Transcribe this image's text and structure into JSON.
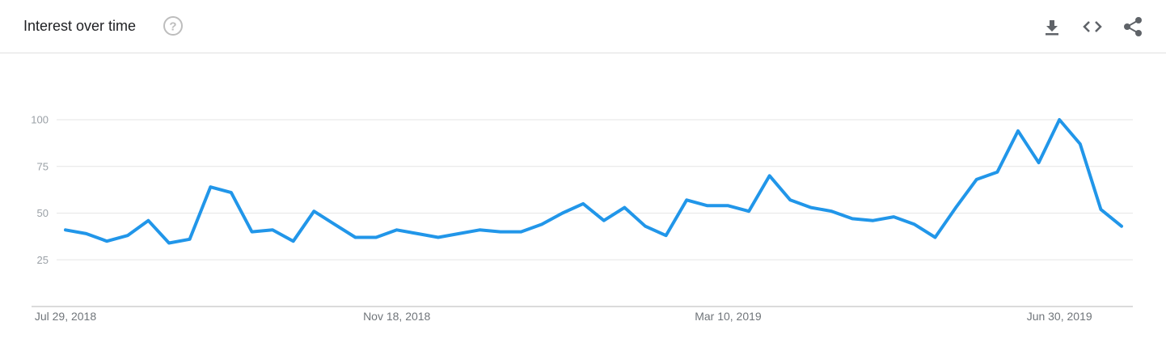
{
  "header": {
    "title": "Interest over time",
    "help_icon": "help-circle-icon",
    "actions": [
      {
        "name": "download",
        "icon": "download-icon"
      },
      {
        "name": "embed",
        "icon": "code-icon"
      },
      {
        "name": "share",
        "icon": "share-icon"
      }
    ]
  },
  "colors": {
    "line": "#2196e9",
    "grid": "#e6e6e6",
    "axis": "#cfcfcf",
    "icon": "#5f6368"
  },
  "chart_data": {
    "type": "line",
    "title": "Interest over time",
    "xlabel": "",
    "ylabel": "",
    "ylim": [
      0,
      100
    ],
    "yticks": [
      "100",
      "75",
      "50",
      "25"
    ],
    "x_tick_labels": [
      {
        "label": "Jul 29, 2018",
        "index": 0
      },
      {
        "label": "Nov 18, 2018",
        "index": 16
      },
      {
        "label": "Mar 10, 2019",
        "index": 32
      },
      {
        "label": "Jun 30, 2019",
        "index": 48
      }
    ],
    "grid": true,
    "series": [
      {
        "values": [
          41,
          39,
          35,
          38,
          46,
          34,
          36,
          64,
          61,
          40,
          41,
          35,
          51,
          44,
          37,
          37,
          41,
          39,
          37,
          39,
          41,
          40,
          40,
          44,
          50,
          55,
          46,
          53,
          43,
          38,
          57,
          54,
          54,
          51,
          70,
          57,
          53,
          51,
          47,
          46,
          48,
          44,
          37,
          53,
          68,
          72,
          94,
          77,
          100,
          87,
          52,
          43
        ]
      }
    ]
  }
}
